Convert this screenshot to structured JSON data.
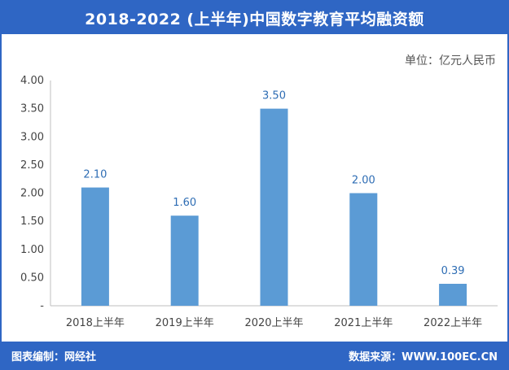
{
  "chart_data": {
    "type": "bar",
    "title": "2018-2022 (上半年)中国数字教育平均融资额",
    "unit": "单位：亿元人民币",
    "categories": [
      "2018上半年",
      "2019上半年",
      "2020上半年",
      "2021上半年",
      "2022上半年"
    ],
    "values": [
      2.1,
      1.6,
      3.5,
      2.0,
      0.39
    ],
    "data_labels": [
      "2.10",
      "1.60",
      "3.50",
      "2.00",
      "0.39"
    ],
    "ylim": [
      0,
      4
    ],
    "yticks": [
      0,
      0.5,
      1,
      1.5,
      2,
      2.5,
      3,
      3.5,
      4
    ],
    "ytick_labels": [
      "-",
      "0.50",
      "1.00",
      "1.50",
      "2.00",
      "2.50",
      "3.00",
      "3.50",
      "4.00"
    ],
    "grid": false,
    "colors": {
      "bar": "#5b9bd5",
      "header": "#2f66c4",
      "data_label": "#2e6db4"
    }
  },
  "footer": {
    "left": "图表编制：网经社",
    "right": "数据来源：WWW.100EC.CN"
  }
}
